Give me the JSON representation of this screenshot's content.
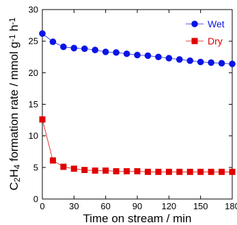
{
  "chart_data": {
    "type": "scatter",
    "title": "",
    "xlabel": "Time on stream / min",
    "ylabel_parts": [
      "C",
      "2",
      "H",
      "4",
      " formation rate / mmol g",
      "-1",
      " h",
      "-1"
    ],
    "xlim": [
      0,
      180
    ],
    "ylim": [
      0,
      30
    ],
    "xticks": [
      0,
      30,
      60,
      90,
      120,
      150,
      180
    ],
    "yticks": [
      0,
      5,
      10,
      15,
      20,
      25,
      30
    ],
    "grid": false,
    "legend_position": "top-right",
    "series": [
      {
        "name": "Wet",
        "marker": "circle",
        "color": "#0a14e6",
        "x": [
          0,
          10,
          20,
          30,
          40,
          50,
          60,
          70,
          80,
          90,
          100,
          110,
          120,
          130,
          140,
          150,
          160,
          170,
          180
        ],
        "y": [
          26.2,
          24.9,
          24.1,
          23.9,
          23.8,
          23.6,
          23.3,
          23.2,
          23.0,
          22.8,
          22.7,
          22.5,
          22.3,
          22.1,
          21.9,
          21.7,
          21.6,
          21.5,
          21.4
        ]
      },
      {
        "name": "Dry",
        "marker": "square",
        "color": "#e00000",
        "x": [
          0,
          10,
          20,
          30,
          40,
          50,
          60,
          70,
          80,
          90,
          100,
          110,
          120,
          130,
          140,
          150,
          160,
          170,
          180
        ],
        "y": [
          12.6,
          6.1,
          5.1,
          4.8,
          4.6,
          4.5,
          4.5,
          4.4,
          4.4,
          4.4,
          4.3,
          4.3,
          4.3,
          4.3,
          4.3,
          4.3,
          4.3,
          4.3,
          4.3
        ]
      }
    ]
  }
}
